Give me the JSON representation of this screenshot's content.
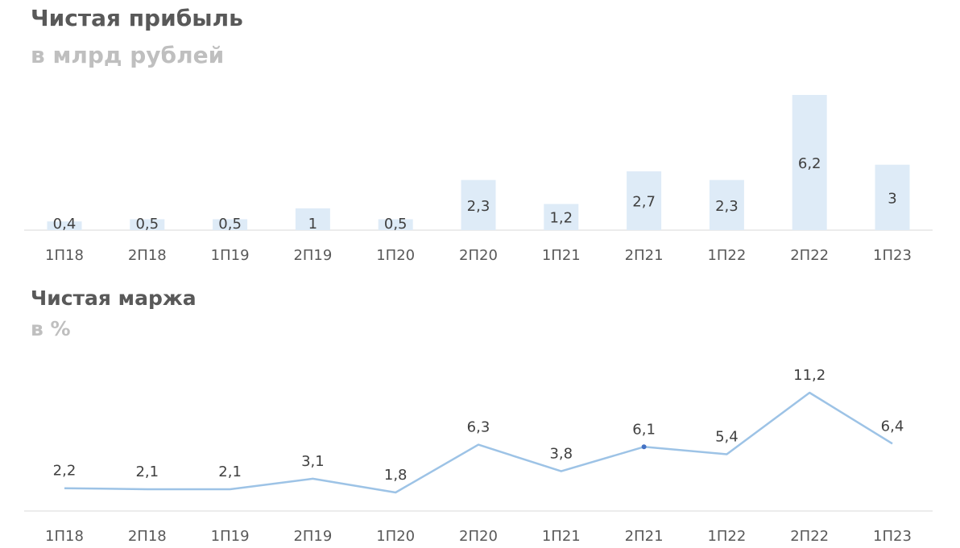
{
  "chart_data": [
    {
      "type": "bar",
      "title": "Чистая прибыль",
      "subtitle": "в млрд рублей",
      "categories": [
        "1П18",
        "2П18",
        "1П19",
        "2П19",
        "1П20",
        "2П20",
        "1П21",
        "2П21",
        "1П22",
        "2П22",
        "1П23"
      ],
      "values": [
        0.4,
        0.5,
        0.5,
        1,
        0.5,
        2.3,
        1.2,
        2.7,
        2.3,
        6.2,
        3
      ],
      "value_labels": [
        "0,4",
        "0,5",
        "0,5",
        "1",
        "0,5",
        "2,3",
        "1,2",
        "2,7",
        "2,3",
        "6,2",
        "3"
      ],
      "color": "#deebf7",
      "grid": false
    },
    {
      "type": "line",
      "title": "Чистая маржа",
      "subtitle": "в %",
      "categories": [
        "1П18",
        "2П18",
        "1П19",
        "2П19",
        "1П20",
        "2П20",
        "1П21",
        "2П21",
        "1П22",
        "2П22",
        "1П23"
      ],
      "values": [
        2.2,
        2.1,
        2.1,
        3.1,
        1.8,
        6.3,
        3.8,
        6.1,
        5.4,
        11.2,
        6.4
      ],
      "value_labels": [
        "2,2",
        "2,1",
        "2,1",
        "3,1",
        "1,8",
        "6,3",
        "3,8",
        "6,1",
        "5,4",
        "11,2",
        "6,4"
      ],
      "color": "#9dc3e6",
      "grid": false
    }
  ]
}
